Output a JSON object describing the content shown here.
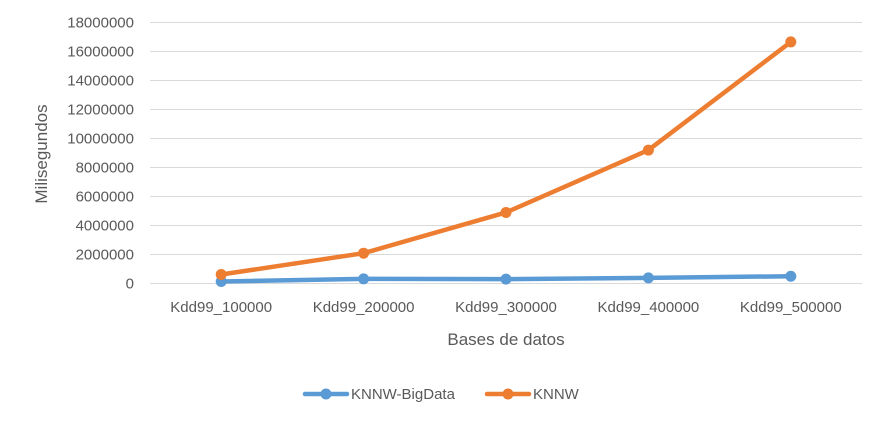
{
  "chart_data": {
    "type": "line",
    "title": "",
    "xlabel": "Bases de datos",
    "ylabel": "Milisegundos",
    "categories": [
      "Kdd99_100000",
      "Kdd99_200000",
      "Kdd99_300000",
      "Kdd99_400000",
      "Kdd99_500000"
    ],
    "series": [
      {
        "name": "KNNW-BigData",
        "color": "#5B9BD5",
        "values": [
          140000,
          320000,
          300000,
          390000,
          500000
        ]
      },
      {
        "name": "KNNW",
        "color": "#ED7D31",
        "values": [
          620000,
          2090000,
          4900000,
          9200000,
          16660000
        ]
      }
    ],
    "yticks": [
      "0",
      "2000000",
      "4000000",
      "6000000",
      "8000000",
      "10000000",
      "12000000",
      "14000000",
      "16000000",
      "18000000"
    ],
    "ylim": [
      0,
      18000000
    ],
    "grid": true,
    "legend_position": "bottom"
  }
}
